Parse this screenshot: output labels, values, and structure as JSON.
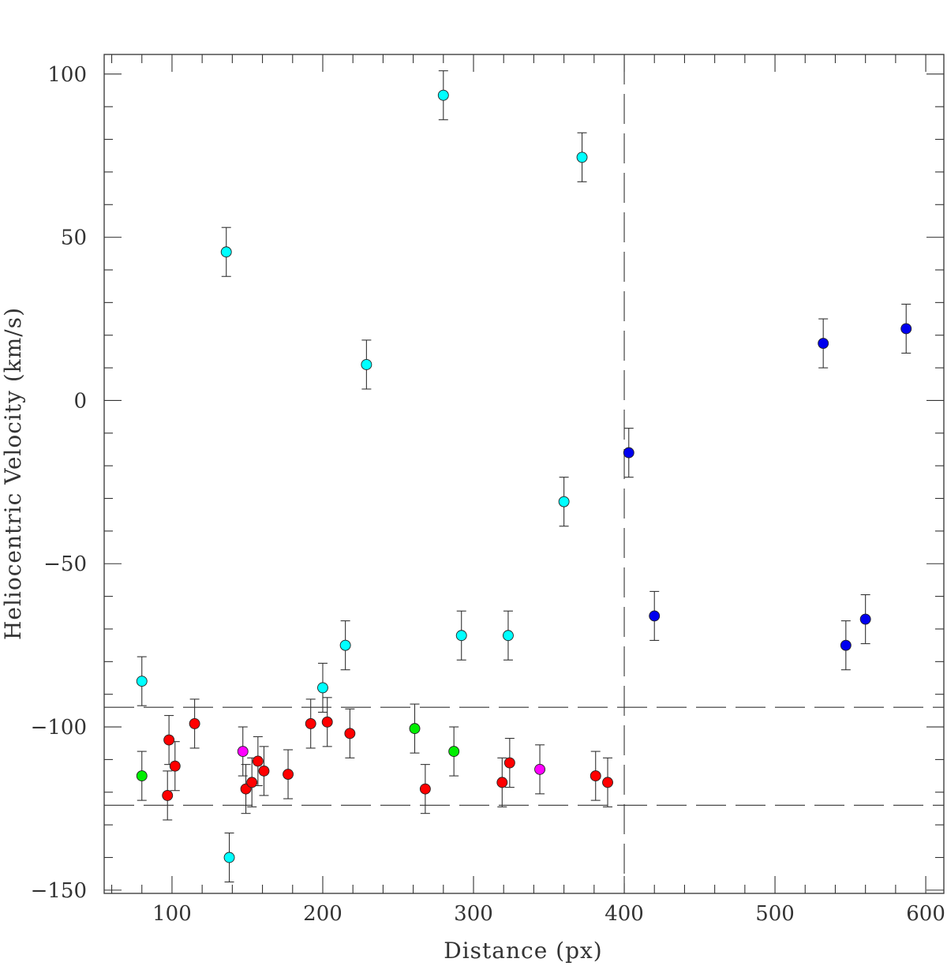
{
  "chart_data": {
    "type": "scatter",
    "xlabel": "Distance (px)",
    "ylabel": "Heliocentric Velocity (km/s)",
    "xlim": [
      55,
      612
    ],
    "ylim": [
      -151,
      106
    ],
    "xticks": [
      100,
      200,
      300,
      400,
      500,
      600
    ],
    "yticks": [
      100,
      50,
      0,
      -50,
      -100,
      -150
    ],
    "tick_labels_x": [
      "100",
      "200",
      "300",
      "400",
      "500",
      "600"
    ],
    "tick_labels_y": [
      "100",
      "50",
      "0",
      "−50",
      "−100",
      "−150"
    ],
    "error_bar": 7.5,
    "reference_lines": {
      "vertical_x": 400,
      "horizontal_y": [
        -94,
        -124
      ],
      "style": "dashed"
    },
    "grid": false,
    "colors": {
      "cyan": "#00ffff",
      "blue": "#0000ee",
      "red": "#ff0000",
      "green": "#00ee00",
      "magenta": "#ff00ff"
    },
    "series": [
      {
        "color": "#00ffff",
        "points": [
          [
            80,
            -86
          ],
          [
            136,
            45.5
          ],
          [
            138,
            -140
          ],
          [
            200,
            -88
          ],
          [
            215,
            -75
          ],
          [
            229,
            11
          ],
          [
            280,
            93.5
          ],
          [
            292,
            -72
          ],
          [
            323,
            -72
          ],
          [
            360,
            -31
          ],
          [
            372,
            74.5
          ]
        ]
      },
      {
        "color": "#0000ee",
        "points": [
          [
            403,
            -16
          ],
          [
            420,
            -66
          ],
          [
            532,
            17.5
          ],
          [
            547,
            -75
          ],
          [
            560,
            -67
          ],
          [
            587,
            22
          ]
        ]
      },
      {
        "color": "#ff0000",
        "points": [
          [
            97,
            -121
          ],
          [
            98,
            -104
          ],
          [
            102,
            -112
          ],
          [
            115,
            -99
          ],
          [
            149,
            -119
          ],
          [
            153,
            -117
          ],
          [
            157,
            -110.5
          ],
          [
            161,
            -113.5
          ],
          [
            177,
            -114.5
          ],
          [
            192,
            -99
          ],
          [
            203,
            -98.5
          ],
          [
            218,
            -102
          ],
          [
            268,
            -119
          ],
          [
            319,
            -117
          ],
          [
            324,
            -111
          ],
          [
            381,
            -115
          ],
          [
            389,
            -117
          ]
        ]
      },
      {
        "color": "#00ee00",
        "points": [
          [
            80,
            -115
          ],
          [
            261,
            -100.5
          ],
          [
            287,
            -107.5
          ]
        ]
      },
      {
        "color": "#ff00ff",
        "points": [
          [
            147,
            -107.5
          ],
          [
            344,
            -113
          ]
        ]
      }
    ]
  }
}
